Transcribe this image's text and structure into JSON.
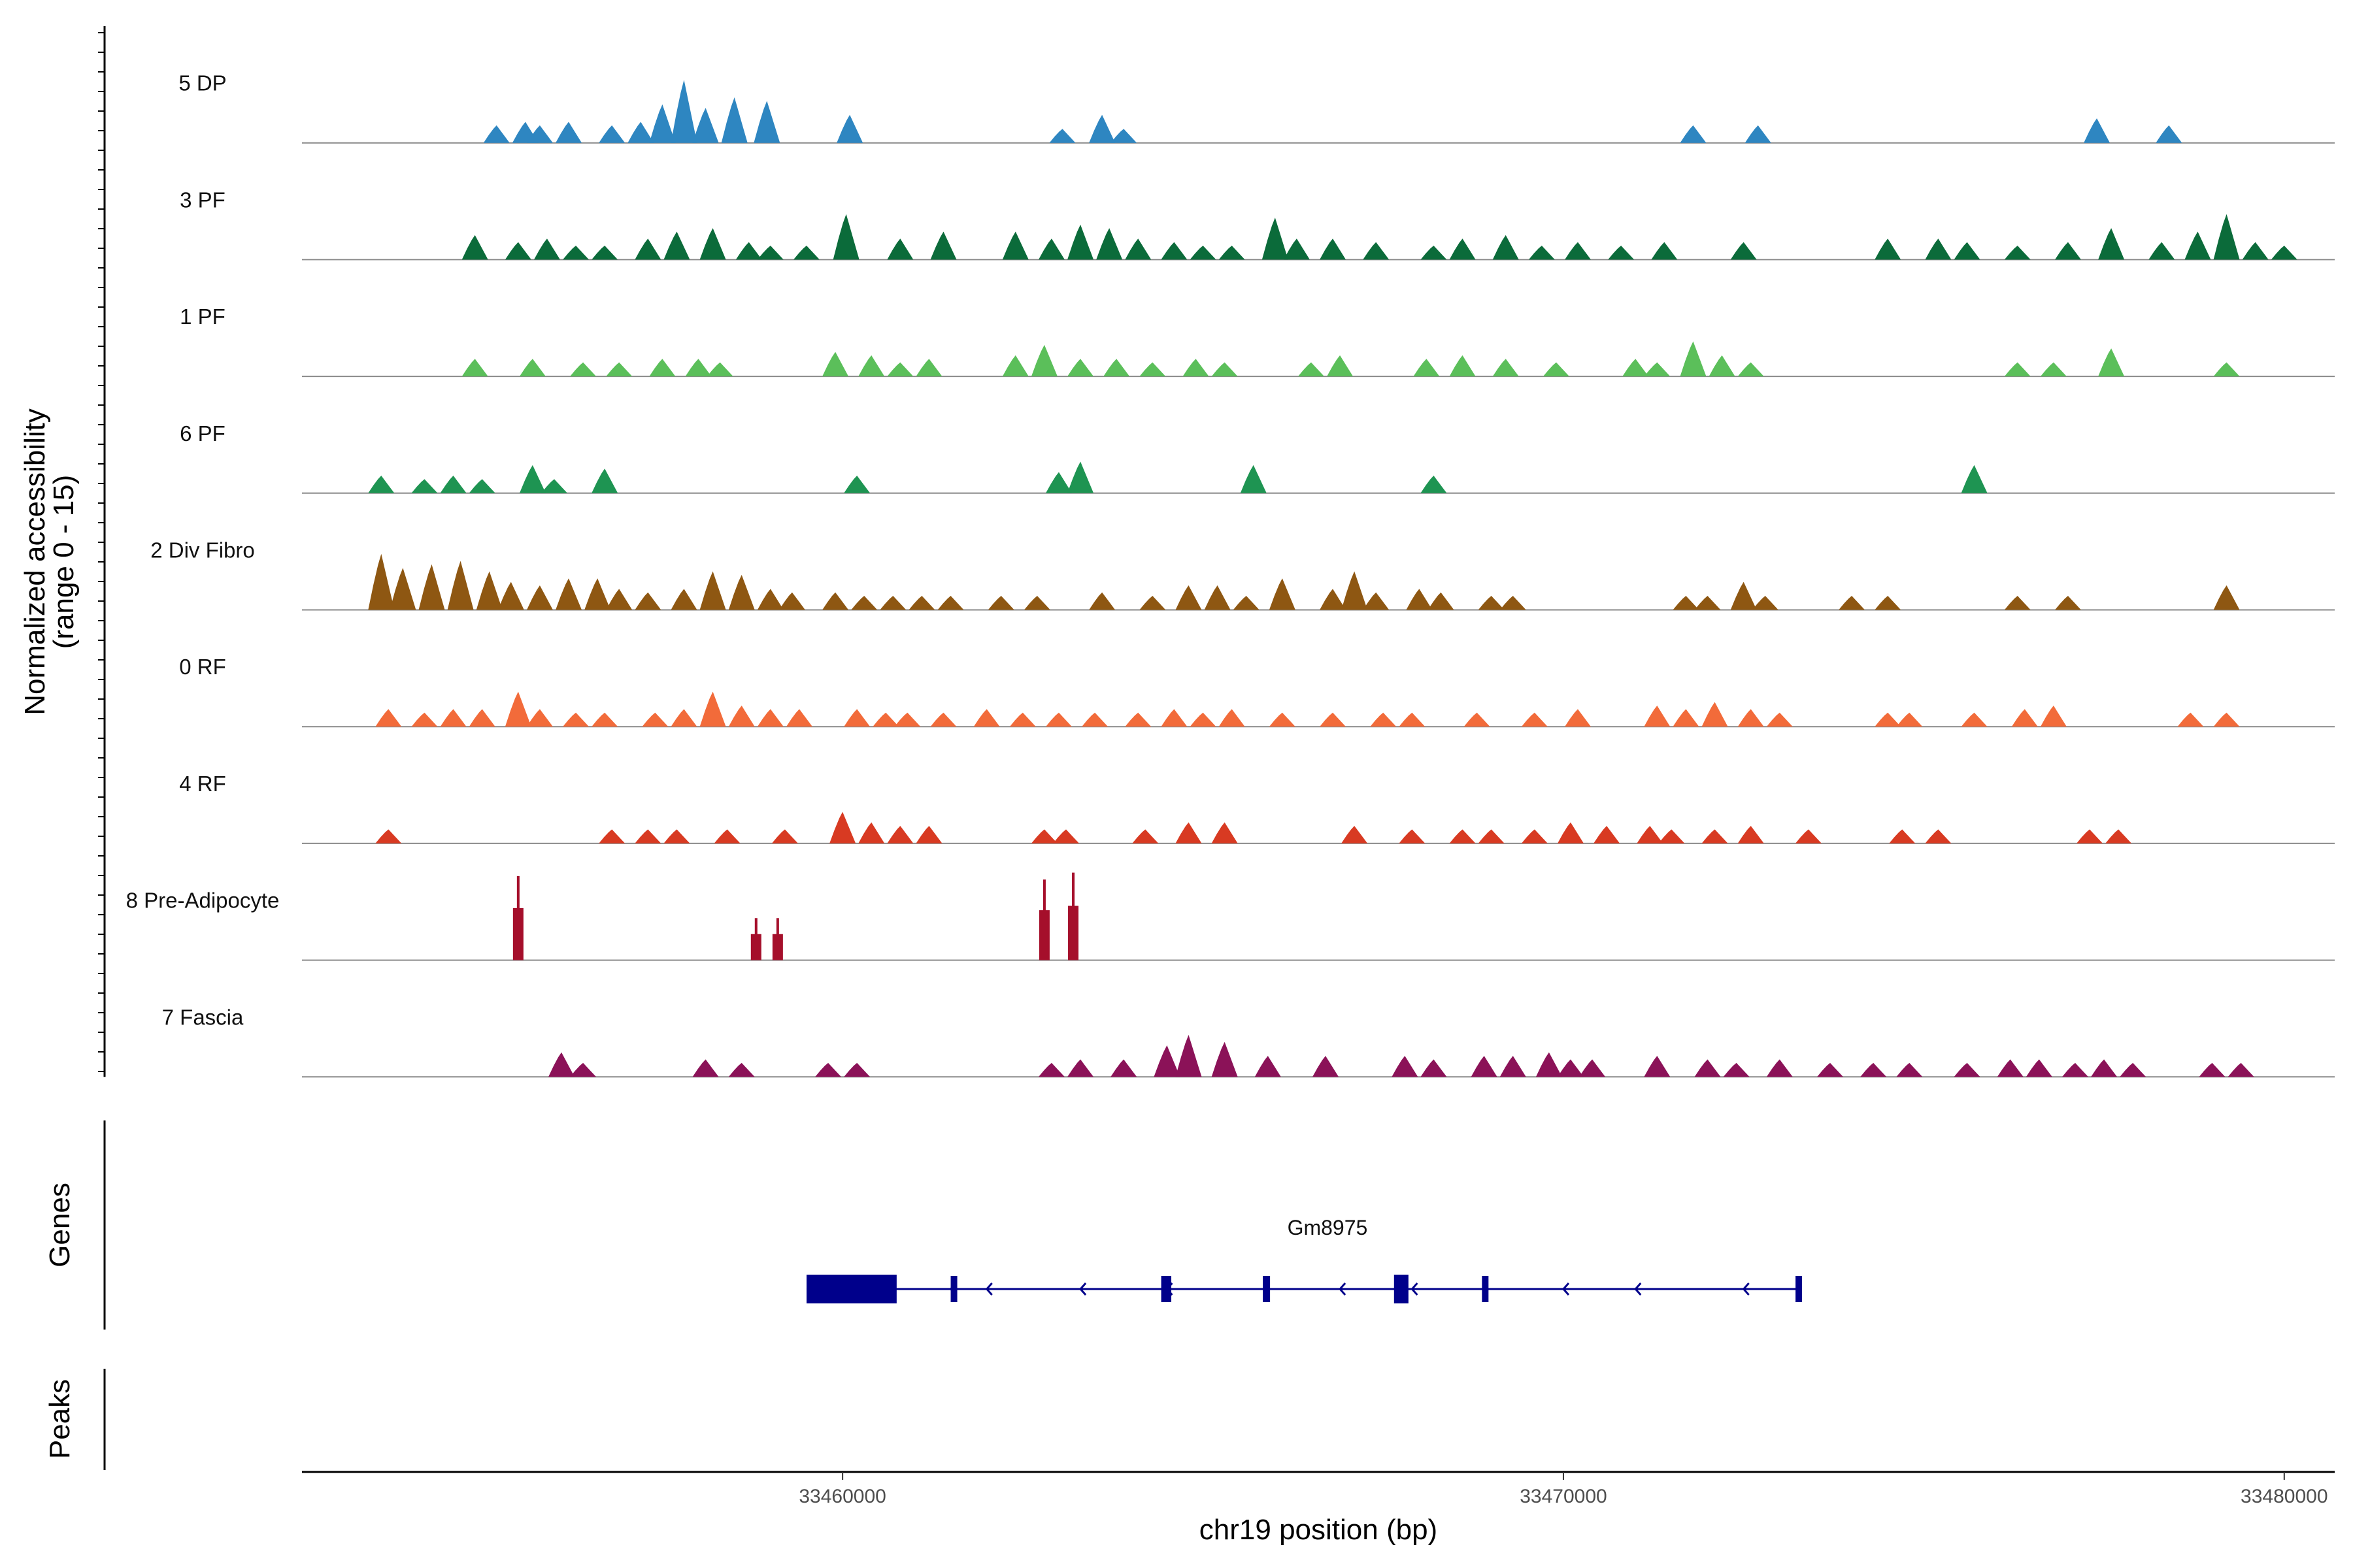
{
  "chart_data": {
    "type": "coverage",
    "y_axis_label_line1": "Normalized accessibility",
    "y_axis_label_line2": "(range 0 - 15)",
    "y_range": [
      0,
      15
    ],
    "xlabel": "chr19 position (bp)",
    "xlim": [
      33452500,
      33480700
    ],
    "x_ticks": [
      {
        "value": 33460000,
        "label": "33460000"
      },
      {
        "value": 33470000,
        "label": "33470000"
      },
      {
        "value": 33480000,
        "label": "33480000"
      }
    ],
    "tracks": [
      {
        "name": "5 DP",
        "color": "#2E86C1",
        "peaks": [
          [
            33455200,
            2.5
          ],
          [
            33455600,
            3
          ],
          [
            33455800,
            2.5
          ],
          [
            33456200,
            3
          ],
          [
            33456800,
            2.5
          ],
          [
            33457200,
            3
          ],
          [
            33457500,
            5.5
          ],
          [
            33457800,
            9
          ],
          [
            33458100,
            5
          ],
          [
            33458500,
            6.5
          ],
          [
            33458950,
            6
          ],
          [
            33460100,
            4
          ],
          [
            33463050,
            2
          ],
          [
            33463600,
            4
          ],
          [
            33463900,
            2
          ],
          [
            33471800,
            2.5
          ],
          [
            33472700,
            2.5
          ],
          [
            33477400,
            3.5
          ],
          [
            33478400,
            2.5
          ]
        ]
      },
      {
        "name": "3 PF",
        "color": "#0B6B3A",
        "peaks": [
          [
            33454900,
            3.5
          ],
          [
            33455500,
            2.5
          ],
          [
            33455900,
            3
          ],
          [
            33456300,
            2
          ],
          [
            33456700,
            2
          ],
          [
            33457300,
            3
          ],
          [
            33457700,
            4
          ],
          [
            33458200,
            4.5
          ],
          [
            33458700,
            2.5
          ],
          [
            33459000,
            2
          ],
          [
            33459500,
            2
          ],
          [
            33460050,
            6.5
          ],
          [
            33460800,
            3
          ],
          [
            33461400,
            4
          ],
          [
            33462400,
            4
          ],
          [
            33462900,
            3
          ],
          [
            33463300,
            5
          ],
          [
            33463700,
            4.5
          ],
          [
            33464100,
            3
          ],
          [
            33464600,
            2.5
          ],
          [
            33465000,
            2
          ],
          [
            33465400,
            2
          ],
          [
            33466000,
            6
          ],
          [
            33466300,
            3
          ],
          [
            33466800,
            3
          ],
          [
            33467400,
            2.5
          ],
          [
            33468200,
            2
          ],
          [
            33468600,
            3
          ],
          [
            33469200,
            3.5
          ],
          [
            33469700,
            2
          ],
          [
            33470200,
            2.5
          ],
          [
            33470800,
            2
          ],
          [
            33471400,
            2.5
          ],
          [
            33472500,
            2.5
          ],
          [
            33474500,
            3
          ],
          [
            33475200,
            3
          ],
          [
            33475600,
            2.5
          ],
          [
            33476300,
            2
          ],
          [
            33477000,
            2.5
          ],
          [
            33477600,
            4.5
          ],
          [
            33478300,
            2.5
          ],
          [
            33478800,
            4
          ],
          [
            33479200,
            6.5
          ],
          [
            33479600,
            2.5
          ],
          [
            33480000,
            2
          ]
        ]
      },
      {
        "name": "1 PF",
        "color": "#5BBF5A",
        "peaks": [
          [
            33454900,
            2.5
          ],
          [
            33455700,
            2.5
          ],
          [
            33456400,
            2
          ],
          [
            33456900,
            2
          ],
          [
            33457500,
            2.5
          ],
          [
            33458000,
            2.5
          ],
          [
            33458300,
            2
          ],
          [
            33459900,
            3.5
          ],
          [
            33460400,
            3
          ],
          [
            33460800,
            2
          ],
          [
            33461200,
            2.5
          ],
          [
            33462400,
            3
          ],
          [
            33462800,
            4.5
          ],
          [
            33463300,
            2.5
          ],
          [
            33463800,
            2.5
          ],
          [
            33464300,
            2
          ],
          [
            33464900,
            2.5
          ],
          [
            33465300,
            2
          ],
          [
            33466500,
            2
          ],
          [
            33466900,
            3
          ],
          [
            33468100,
            2.5
          ],
          [
            33468600,
            3
          ],
          [
            33469200,
            2.5
          ],
          [
            33469900,
            2
          ],
          [
            33471000,
            2.5
          ],
          [
            33471300,
            2
          ],
          [
            33471800,
            5
          ],
          [
            33472200,
            3
          ],
          [
            33472600,
            2
          ],
          [
            33476300,
            2
          ],
          [
            33476800,
            2
          ],
          [
            33477600,
            4
          ],
          [
            33479200,
            2
          ]
        ]
      },
      {
        "name": "6 PF",
        "color": "#1E9452",
        "peaks": [
          [
            33453600,
            2.5
          ],
          [
            33454200,
            2
          ],
          [
            33454600,
            2.5
          ],
          [
            33455000,
            2
          ],
          [
            33455700,
            4
          ],
          [
            33456000,
            2
          ],
          [
            33456700,
            3.5
          ],
          [
            33460200,
            2.5
          ],
          [
            33463000,
            3
          ],
          [
            33463300,
            4.5
          ],
          [
            33465700,
            4
          ],
          [
            33468200,
            2.5
          ],
          [
            33475700,
            4
          ]
        ]
      },
      {
        "name": "2 Div Fibro",
        "color": "#8E5712",
        "peaks": [
          [
            33453600,
            8
          ],
          [
            33453900,
            6
          ],
          [
            33454300,
            6.5
          ],
          [
            33454700,
            7
          ],
          [
            33455100,
            5.5
          ],
          [
            33455400,
            4
          ],
          [
            33455800,
            3.5
          ],
          [
            33456200,
            4.5
          ],
          [
            33456600,
            4.5
          ],
          [
            33456900,
            3
          ],
          [
            33457300,
            2.5
          ],
          [
            33457800,
            3
          ],
          [
            33458200,
            5.5
          ],
          [
            33458600,
            5
          ],
          [
            33459000,
            3
          ],
          [
            33459300,
            2.5
          ],
          [
            33459900,
            2.5
          ],
          [
            33460300,
            2
          ],
          [
            33460700,
            2
          ],
          [
            33461100,
            2
          ],
          [
            33461500,
            2
          ],
          [
            33462200,
            2
          ],
          [
            33462700,
            2
          ],
          [
            33463600,
            2.5
          ],
          [
            33464300,
            2
          ],
          [
            33464800,
            3.5
          ],
          [
            33465200,
            3.5
          ],
          [
            33465600,
            2
          ],
          [
            33466100,
            4.5
          ],
          [
            33466800,
            3
          ],
          [
            33467100,
            5.5
          ],
          [
            33467400,
            2.5
          ],
          [
            33468000,
            3
          ],
          [
            33468300,
            2.5
          ],
          [
            33469000,
            2
          ],
          [
            33469300,
            2
          ],
          [
            33471700,
            2
          ],
          [
            33472000,
            2
          ],
          [
            33472500,
            4
          ],
          [
            33472800,
            2
          ],
          [
            33474000,
            2
          ],
          [
            33474500,
            2
          ],
          [
            33476300,
            2
          ],
          [
            33477000,
            2
          ],
          [
            33479200,
            3.5
          ]
        ]
      },
      {
        "name": "0 RF",
        "color": "#F26B3A",
        "peaks": [
          [
            33453700,
            2.5
          ],
          [
            33454200,
            2
          ],
          [
            33454600,
            2.5
          ],
          [
            33455000,
            2.5
          ],
          [
            33455500,
            5
          ],
          [
            33455800,
            2.5
          ],
          [
            33456300,
            2
          ],
          [
            33456700,
            2
          ],
          [
            33457400,
            2
          ],
          [
            33457800,
            2.5
          ],
          [
            33458200,
            5
          ],
          [
            33458600,
            3
          ],
          [
            33459000,
            2.5
          ],
          [
            33459400,
            2.5
          ],
          [
            33460200,
            2.5
          ],
          [
            33460600,
            2
          ],
          [
            33460900,
            2
          ],
          [
            33461400,
            2
          ],
          [
            33462000,
            2.5
          ],
          [
            33462500,
            2
          ],
          [
            33463000,
            2
          ],
          [
            33463500,
            2
          ],
          [
            33464100,
            2
          ],
          [
            33464600,
            2.5
          ],
          [
            33465000,
            2
          ],
          [
            33465400,
            2.5
          ],
          [
            33466100,
            2
          ],
          [
            33466800,
            2
          ],
          [
            33467500,
            2
          ],
          [
            33467900,
            2
          ],
          [
            33468800,
            2
          ],
          [
            33469600,
            2
          ],
          [
            33470200,
            2.5
          ],
          [
            33471300,
            3
          ],
          [
            33471700,
            2.5
          ],
          [
            33472100,
            3.5
          ],
          [
            33472600,
            2.5
          ],
          [
            33473000,
            2
          ],
          [
            33474500,
            2
          ],
          [
            33474800,
            2
          ],
          [
            33475700,
            2
          ],
          [
            33476400,
            2.5
          ],
          [
            33476800,
            3
          ],
          [
            33478700,
            2
          ],
          [
            33479200,
            2
          ]
        ]
      },
      {
        "name": "4 RF",
        "color": "#D83A22",
        "peaks": [
          [
            33453700,
            2
          ],
          [
            33456800,
            2
          ],
          [
            33457300,
            2
          ],
          [
            33457700,
            2
          ],
          [
            33458400,
            2
          ],
          [
            33459200,
            2
          ],
          [
            33460000,
            4.5
          ],
          [
            33460400,
            3
          ],
          [
            33460800,
            2.5
          ],
          [
            33461200,
            2.5
          ],
          [
            33462800,
            2
          ],
          [
            33463100,
            2
          ],
          [
            33464200,
            2
          ],
          [
            33464800,
            3
          ],
          [
            33465300,
            3
          ],
          [
            33467100,
            2.5
          ],
          [
            33467900,
            2
          ],
          [
            33468600,
            2
          ],
          [
            33469000,
            2
          ],
          [
            33469600,
            2
          ],
          [
            33470100,
            3
          ],
          [
            33470600,
            2.5
          ],
          [
            33471200,
            2.5
          ],
          [
            33471500,
            2
          ],
          [
            33472100,
            2
          ],
          [
            33472600,
            2.5
          ],
          [
            33473400,
            2
          ],
          [
            33474700,
            2
          ],
          [
            33475200,
            2
          ],
          [
            33477300,
            2
          ],
          [
            33477700,
            2
          ]
        ]
      },
      {
        "name": "8 Pre-Adipocyte",
        "color": "#A50F2B",
        "peaks": [
          [
            33455500,
            12
          ],
          [
            33458800,
            6
          ],
          [
            33459100,
            6
          ],
          [
            33462800,
            11.5
          ],
          [
            33463200,
            12.5
          ]
        ]
      },
      {
        "name": "7 Fascia",
        "color": "#8B1258",
        "peaks": [
          [
            33456100,
            3.5
          ],
          [
            33456400,
            2
          ],
          [
            33458100,
            2.5
          ],
          [
            33458600,
            2
          ],
          [
            33459800,
            2
          ],
          [
            33460200,
            2
          ],
          [
            33462900,
            2
          ],
          [
            33463300,
            2.5
          ],
          [
            33463900,
            2.5
          ],
          [
            33464500,
            4.5
          ],
          [
            33464800,
            6
          ],
          [
            33465300,
            5
          ],
          [
            33465900,
            3
          ],
          [
            33466700,
            3
          ],
          [
            33467800,
            3
          ],
          [
            33468200,
            2.5
          ],
          [
            33468900,
            3
          ],
          [
            33469300,
            3
          ],
          [
            33469800,
            3.5
          ],
          [
            33470100,
            2.5
          ],
          [
            33470400,
            2.5
          ],
          [
            33471300,
            3
          ],
          [
            33472000,
            2.5
          ],
          [
            33472400,
            2
          ],
          [
            33473000,
            2.5
          ],
          [
            33473700,
            2
          ],
          [
            33474300,
            2
          ],
          [
            33474800,
            2
          ],
          [
            33475600,
            2
          ],
          [
            33476200,
            2.5
          ],
          [
            33476600,
            2.5
          ],
          [
            33477100,
            2
          ],
          [
            33477500,
            2.5
          ],
          [
            33477900,
            2
          ],
          [
            33479000,
            2
          ],
          [
            33479400,
            2
          ]
        ]
      }
    ],
    "gene": {
      "name": "Gm8975",
      "start": 33459500,
      "end": 33473300,
      "strand": "-",
      "color": "#00008B",
      "exons": [
        [
          33459500,
          33460750
        ],
        [
          33461500,
          33461550
        ],
        [
          33464420,
          33464560
        ],
        [
          33465830,
          33465930
        ],
        [
          33467650,
          33467850
        ],
        [
          33468870,
          33468960
        ],
        [
          33473220,
          33473300
        ]
      ],
      "thick_exons": [
        0,
        4
      ]
    },
    "genes_label": "Genes",
    "peaks_label": "Peaks"
  }
}
